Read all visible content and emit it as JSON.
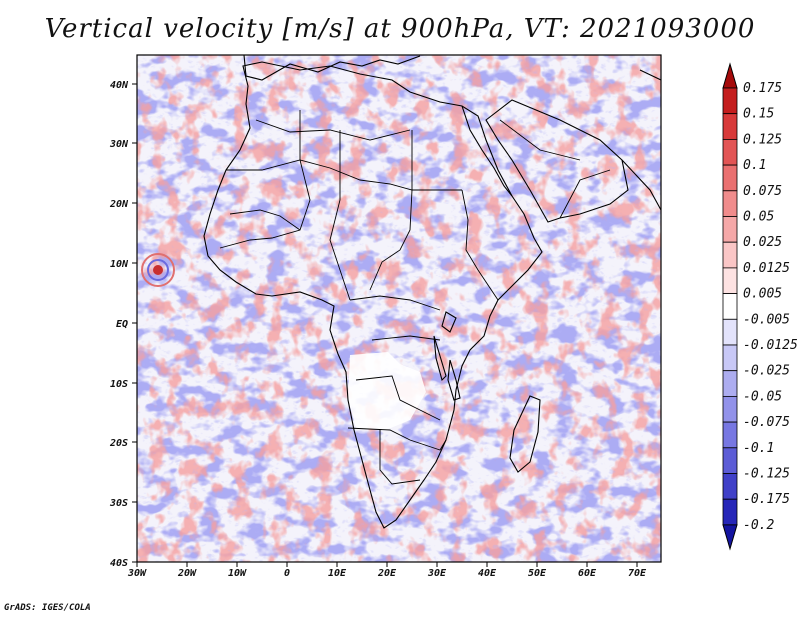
{
  "title": "Vertical velocity [m/s] at 900hPa, VT: 2021093000",
  "footer": "GrADS: IGES/COLA",
  "map": {
    "lat_labels": [
      "40N",
      "30N",
      "20N",
      "10N",
      "EQ",
      "10S",
      "20S",
      "30S",
      "40S"
    ],
    "lon_labels": [
      "30W",
      "20W",
      "10W",
      "0",
      "10E",
      "20E",
      "30E",
      "40E",
      "50E",
      "60E",
      "70E"
    ],
    "lat_range": [
      -40,
      45
    ],
    "lon_range": [
      -30,
      75
    ]
  },
  "colorbar": {
    "labels": [
      "0.175",
      "0.15",
      "0.125",
      "0.1",
      "0.075",
      "0.05",
      "0.025",
      "0.0125",
      "0.005",
      "-0.005",
      "-0.0125",
      "-0.025",
      "-0.05",
      "-0.075",
      "-0.1",
      "-0.125",
      "-0.175",
      "-0.2"
    ],
    "colors": [
      "#a50a0a",
      "#c41e1e",
      "#d83a3a",
      "#e25555",
      "#ea7070",
      "#f08c8c",
      "#f5a8a8",
      "#fac6c6",
      "#fde2e2",
      "#ffffff",
      "#e3e3fb",
      "#c8c8f6",
      "#adadf0",
      "#9292ea",
      "#7777e2",
      "#5c5cd6",
      "#4040c8",
      "#2626b8",
      "#1414a0"
    ]
  }
}
